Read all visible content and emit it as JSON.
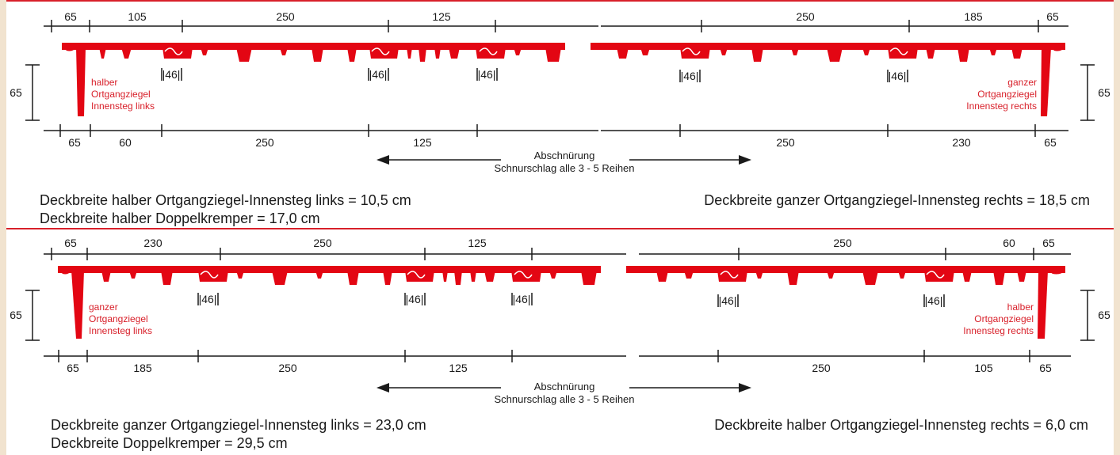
{
  "colors": {
    "tile": "#e30613",
    "line": "#1a1a1a",
    "label": "#d8202a",
    "panel_border": "#d8202a"
  },
  "top": {
    "upper_dims": [
      "65",
      "105",
      "250",
      "125",
      "250",
      "185",
      "65"
    ],
    "lower_dims": [
      "65",
      "60",
      "250",
      "125",
      "250",
      "230",
      "65"
    ],
    "overlaps": [
      "|46|",
      "|46|",
      "|46|",
      "|46|",
      "|46|"
    ],
    "height_left": "65",
    "height_right": "65",
    "label_left": [
      "halber",
      "Ortgangziegel",
      "Innensteg links"
    ],
    "label_right": [
      "ganzer",
      "Ortgangziegel",
      "Innensteg rechts"
    ],
    "arrow_title": "Abschnürung",
    "arrow_sub": "Schnurschlag alle 3 - 5 Reihen",
    "summary_left_1": "Deckbreite halber Ortgangziegel-Innensteg links = 10,5 cm",
    "summary_left_2": "Deckbreite halber Doppelkremper = 17,0 cm",
    "summary_right": "Deckbreite ganzer Ortgangziegel-Innensteg rechts = 18,5 cm"
  },
  "bottom": {
    "upper_dims": [
      "65",
      "230",
      "250",
      "125",
      "250",
      "60",
      "65"
    ],
    "lower_dims": [
      "65",
      "185",
      "250",
      "125",
      "250",
      "105",
      "65"
    ],
    "overlaps": [
      "|46|",
      "|46|",
      "|46|",
      "|46|",
      "|46|"
    ],
    "height_left": "65",
    "height_right": "65",
    "label_left": [
      "ganzer",
      "Ortgangziegel",
      "Innensteg links"
    ],
    "label_right": [
      "halber",
      "Ortgangziegel",
      "Innensteg rechts"
    ],
    "arrow_title": "Abschnürung",
    "arrow_sub": "Schnurschlag alle 3 - 5 Reihen",
    "summary_left_1": "Deckbreite ganzer Ortgangziegel-Innensteg links = 23,0 cm",
    "summary_left_2": "Deckbreite Doppelkremper = 29,5 cm",
    "summary_right": "Deckbreite halber Ortgangziegel-Innensteg rechts = 6,0 cm"
  }
}
